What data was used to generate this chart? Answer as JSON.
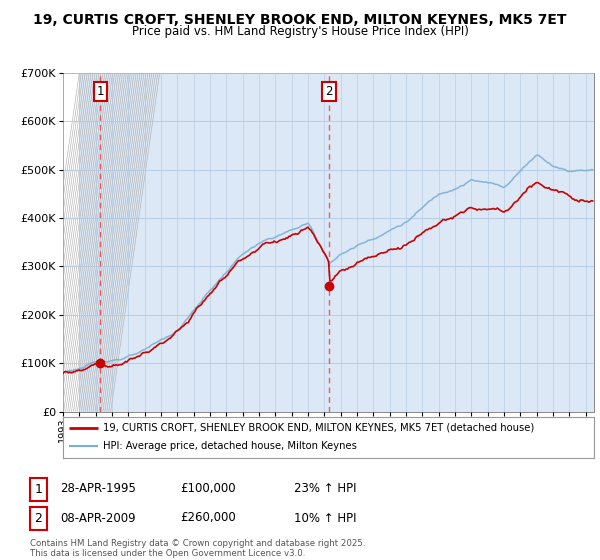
{
  "title": "19, CURTIS CROFT, SHENLEY BROOK END, MILTON KEYNES, MK5 7ET",
  "subtitle": "Price paid vs. HM Land Registry's House Price Index (HPI)",
  "legend_line1": "19, CURTIS CROFT, SHENLEY BROOK END, MILTON KEYNES, MK5 7ET (detached house)",
  "legend_line2": "HPI: Average price, detached house, Milton Keynes",
  "transaction1_date": "28-APR-1995",
  "transaction1_price": "£100,000",
  "transaction1_hpi": "23% ↑ HPI",
  "transaction2_date": "08-APR-2009",
  "transaction2_price": "£260,000",
  "transaction2_hpi": "10% ↑ HPI",
  "footer": "Contains HM Land Registry data © Crown copyright and database right 2025.\nThis data is licensed under the Open Government Licence v3.0.",
  "line_color_red": "#cc0000",
  "line_color_blue": "#7aafd4",
  "vline_color": "#ee4444",
  "chart_bg": "#dce8f5",
  "hatch_bg": "#ffffff",
  "background_color": "#ffffff",
  "ylim": [
    0,
    700000
  ],
  "yticks": [
    0,
    100000,
    200000,
    300000,
    400000,
    500000,
    600000,
    700000
  ],
  "xlim_start": 1993,
  "xlim_end": 2025.5,
  "t1_year": 1995.29,
  "t2_year": 2009.27,
  "price1": 100000,
  "price2": 260000
}
